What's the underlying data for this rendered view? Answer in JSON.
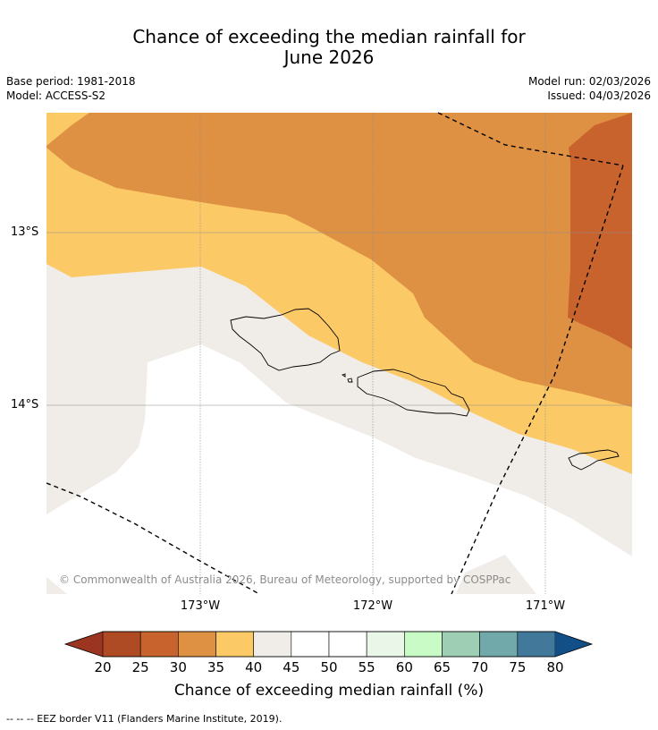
{
  "title": {
    "line1": "Chance of exceeding the median rainfall for",
    "line2": "June 2026"
  },
  "meta": {
    "base_period": "Base period: 1981-2018",
    "model": "Model: ACCESS-S2",
    "model_run": "Model run: 02/03/2026",
    "issued": "Issued: 04/03/2026"
  },
  "map": {
    "lat_labels": [
      "13°S",
      "14°S"
    ],
    "lon_labels": [
      "173°W",
      "172°W",
      "171°W"
    ],
    "copyright": "© Commonwealth of Australia 2026, Bureau of Meteorology, supported by COSPPac",
    "colors": {
      "c25_30": "#c8632e",
      "c30_35": "#de9043",
      "c35_40": "#fcc967",
      "c40_45": "#f0ece7",
      "c45_55": "#ffffff",
      "grid": "#8c8c8c",
      "coast": "#000000",
      "eez": "#000000"
    }
  },
  "colorbar": {
    "label": "Chance of exceeding median rainfall (%)",
    "ticks": [
      "20",
      "25",
      "30",
      "35",
      "40",
      "45",
      "50",
      "55",
      "60",
      "65",
      "70",
      "75",
      "80"
    ],
    "under_color": "#9b3420",
    "over_color": "#134f87",
    "colors": [
      "#ae4b25",
      "#c8632e",
      "#de9043",
      "#fcc967",
      "#f0ece7",
      "#ffffff",
      "#ffffff",
      "#eaf6e8",
      "#c9fbc6",
      "#9ecfb5",
      "#71a9ab",
      "#42789a"
    ]
  },
  "footnote": "-- -- -- EEZ border V11 (Flanders Marine Institute, 2019)."
}
